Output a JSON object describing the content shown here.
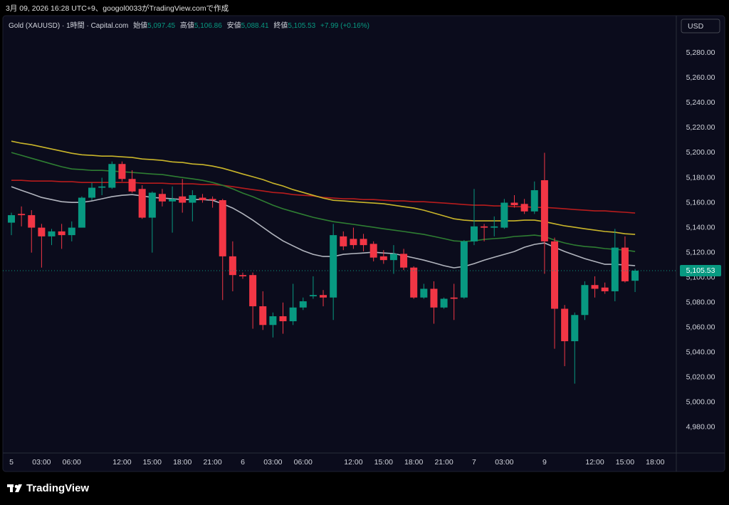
{
  "caption": "3月 09, 2026 16:28 UTC+9、googol0033がTradingView.comで作成",
  "header": {
    "symbol": "Gold (XAUUSD) · 1時間 · Capital.com",
    "open_label": "始値",
    "open": "5,097.45",
    "high_label": "高値",
    "high": "5,106.86",
    "low_label": "安値",
    "low": "5,088.41",
    "close_label": "終値",
    "close": "5,105.53",
    "change": "+7.99 (+0.16%)"
  },
  "currency": "USD",
  "brand": "TradingView",
  "chart_data": {
    "type": "candlestick",
    "up_color": "#089981",
    "down_color": "#f23645",
    "grid": false,
    "categories": [
      "5",
      null,
      null,
      "03:00",
      null,
      null,
      "06:00",
      null,
      null,
      null,
      null,
      "12:00",
      null,
      null,
      "15:00",
      null,
      null,
      "18:00",
      null,
      null,
      "21:00",
      null,
      null,
      "6",
      null,
      null,
      "03:00",
      null,
      null,
      "06:00",
      null,
      null,
      null,
      null,
      "12:00",
      null,
      null,
      "15:00",
      null,
      null,
      "18:00",
      null,
      null,
      "21:00",
      null,
      null,
      "7",
      null,
      null,
      "03:00",
      null,
      null,
      null,
      "9",
      null,
      null,
      null,
      null,
      "12:00",
      null,
      null,
      "15:00",
      null,
      null,
      "18:00"
    ],
    "open": [
      5144,
      5151,
      5150,
      5140,
      5133,
      5137,
      5134,
      5140,
      5164,
      5172,
      5172,
      5191,
      5179,
      5171,
      5148,
      5167,
      5161,
      5165,
      5160,
      5164,
      5163,
      5162,
      5117,
      5102,
      5102,
      5077,
      5062,
      5069,
      5065,
      5076,
      5085,
      5086,
      5084,
      5133,
      5131,
      5131,
      5127,
      5117,
      5114,
      5119,
      5108,
      5084,
      5091,
      5076,
      5084,
      5084,
      5129,
      5141,
      5140,
      5140,
      5160,
      5159,
      5153,
      5178,
      5129,
      5075,
      5049,
      5070,
      5094,
      5092,
      5089,
      5124,
      5097.45,
      null,
      null
    ],
    "high": [
      5152,
      5157,
      5154,
      5143,
      5139,
      5143,
      5145,
      5165,
      5176,
      5180,
      5193,
      5193,
      5186,
      5174,
      5169,
      5171,
      5173,
      5179,
      5170,
      5167,
      5165,
      5163,
      5129,
      5104,
      5104,
      5089,
      5072,
      5080,
      5095,
      5084,
      5101,
      5090,
      5143,
      5137,
      5140,
      5135,
      5129,
      5122,
      5126,
      5123,
      5109,
      5095,
      5097,
      5084,
      5095,
      5130,
      5171,
      5143,
      5149,
      5163,
      5166,
      5163,
      5177,
      5200,
      5132,
      5078,
      5072,
      5097,
      5101,
      5096,
      5139,
      5133,
      5106.86,
      null,
      null
    ],
    "low": [
      5134,
      5141,
      5120,
      5108,
      5126,
      5123,
      5129,
      5143,
      5162,
      5166,
      5171,
      5177,
      5168,
      5147,
      5120,
      5157,
      5136,
      5152,
      5145,
      5160,
      5156,
      5082,
      5089,
      5099,
      5059,
      5058,
      5052,
      5055,
      5062,
      5074,
      5083,
      5077,
      5066,
      5122,
      5123,
      5121,
      5113,
      5111,
      5103,
      5106,
      5083,
      5083,
      5063,
      5075,
      5066,
      5083,
      5126,
      5129,
      5133,
      5139,
      5156,
      5151,
      5151,
      5103,
      5043,
      5029,
      5015,
      5066,
      5084,
      5087,
      5081,
      5096,
      5088.41,
      null,
      null
    ],
    "close": [
      5150,
      5150,
      5140,
      5133,
      5137,
      5134,
      5140,
      5164,
      5172,
      5173,
      5191,
      5179,
      5169,
      5148,
      5168,
      5161,
      5163,
      5160,
      5166,
      5162,
      5162,
      5117,
      5102,
      5101,
      5077,
      5062,
      5069,
      5065,
      5076,
      5081,
      5086,
      5084,
      5134,
      5125,
      5126,
      5126,
      5116,
      5114,
      5119,
      5108,
      5084,
      5091,
      5076,
      5083,
      5083,
      5129,
      5141,
      5140,
      5141,
      5160,
      5158,
      5153,
      5170,
      5129,
      5075,
      5049,
      5070,
      5094,
      5091,
      5089,
      5124,
      5097,
      5105.53,
      null,
      null
    ],
    "lines": [
      {
        "color": "#b71c1c",
        "values": [
          5177.9,
          5177.9,
          5177.3,
          5177.3,
          5177.3,
          5176.8,
          5176.8,
          5176.2,
          5176.2,
          5176.2,
          5176.2,
          5176.2,
          5176.2,
          5175.6,
          5175.6,
          5175.6,
          5175.1,
          5175.1,
          5175.1,
          5174.5,
          5174.5,
          5173.9,
          5172.8,
          5171.6,
          5170.5,
          5169.4,
          5168.2,
          5167.7,
          5166.5,
          5165.9,
          5165.4,
          5164.2,
          5163.7,
          5163.1,
          5163.1,
          5162.5,
          5162.5,
          5161.9,
          5161.4,
          5161.4,
          5160.8,
          5160.8,
          5160.2,
          5159.7,
          5159.1,
          5158.5,
          5158.0,
          5158.0,
          5157.4,
          5157.4,
          5156.8,
          5156.8,
          5156.2,
          5156.2,
          5155.7,
          5155.1,
          5154.5,
          5154.0,
          5153.4,
          5153.4,
          5152.8,
          5152.3,
          5151.7,
          null,
          null
        ]
      },
      {
        "color": "#c9b52a",
        "values": [
          5209.3,
          5207.6,
          5206.4,
          5204.7,
          5203.0,
          5201.3,
          5199.6,
          5198.4,
          5197.9,
          5197.3,
          5197.3,
          5196.7,
          5196.2,
          5195.0,
          5194.5,
          5193.9,
          5192.7,
          5192.2,
          5191.0,
          5190.5,
          5189.3,
          5187.6,
          5185.3,
          5183.0,
          5180.8,
          5178.5,
          5175.6,
          5173.4,
          5170.5,
          5168.2,
          5165.9,
          5163.7,
          5161.9,
          5161.4,
          5160.8,
          5160.2,
          5159.7,
          5159.1,
          5158.0,
          5156.8,
          5155.7,
          5154.0,
          5151.7,
          5149.4,
          5147.1,
          5146.0,
          5145.4,
          5145.4,
          5145.4,
          5145.4,
          5145.4,
          5146.0,
          5146.0,
          5144.8,
          5143.1,
          5141.4,
          5140.3,
          5139.1,
          5138.0,
          5136.9,
          5136.3,
          5135.1,
          5134.6,
          null,
          null
        ]
      },
      {
        "color": "#2e7d32",
        "values": [
          5200.2,
          5197.9,
          5195.6,
          5193.3,
          5191.0,
          5188.8,
          5187.0,
          5186.5,
          5185.9,
          5185.9,
          5185.3,
          5184.8,
          5184.2,
          5183.6,
          5183.0,
          5182.5,
          5181.3,
          5180.2,
          5179.1,
          5177.9,
          5176.2,
          5173.9,
          5171.1,
          5167.7,
          5164.8,
          5161.4,
          5158.0,
          5155.1,
          5152.8,
          5150.5,
          5148.3,
          5146.5,
          5144.8,
          5143.7,
          5142.6,
          5141.4,
          5140.3,
          5139.1,
          5138.0,
          5136.9,
          5135.7,
          5134.6,
          5132.9,
          5131.2,
          5129.4,
          5128.9,
          5129.4,
          5130.6,
          5131.2,
          5131.7,
          5132.9,
          5133.4,
          5134.0,
          5132.9,
          5130.0,
          5127.7,
          5126.0,
          5124.9,
          5124.3,
          5123.2,
          5122.6,
          5122.0,
          5120.9,
          null,
          null
        ]
      },
      {
        "color": "#b2b5be",
        "values": [
          5172.8,
          5169.9,
          5167.1,
          5164.2,
          5162.5,
          5160.8,
          5160.2,
          5160.2,
          5161.4,
          5163.1,
          5164.8,
          5165.9,
          5166.5,
          5165.4,
          5164.2,
          5163.7,
          5163.1,
          5162.5,
          5162.5,
          5162.5,
          5161.9,
          5159.1,
          5155.7,
          5151.1,
          5146.0,
          5140.3,
          5134.6,
          5129.4,
          5125.4,
          5121.5,
          5118.6,
          5116.9,
          5116.9,
          5118.6,
          5119.2,
          5119.7,
          5120.3,
          5119.7,
          5119.2,
          5117.5,
          5115.8,
          5114.0,
          5111.8,
          5109.5,
          5107.8,
          5108.9,
          5111.2,
          5114.0,
          5116.3,
          5118.6,
          5120.9,
          5124.3,
          5126.6,
          5127.7,
          5124.3,
          5120.9,
          5118.0,
          5115.2,
          5112.9,
          5110.6,
          5110.6,
          5110.1,
          5109.5,
          null,
          null
        ]
      }
    ],
    "last_price": {
      "value": 5105.53,
      "label": "5,105.53"
    },
    "ylim": [
      4960,
      5295
    ],
    "yticks": [
      {
        "value": 4980,
        "label": "4,980.00"
      },
      {
        "value": 5000,
        "label": "5,000.00"
      },
      {
        "value": 5020,
        "label": "5,020.00"
      },
      {
        "value": 5040,
        "label": "5,040.00"
      },
      {
        "value": 5060,
        "label": "5,060.00"
      },
      {
        "value": 5080,
        "label": "5,080.00"
      },
      {
        "value": 5100,
        "label": "5,100.00"
      },
      {
        "value": 5120,
        "label": "5,120.00"
      },
      {
        "value": 5140,
        "label": "5,140.00"
      },
      {
        "value": 5160,
        "label": "5,160.00"
      },
      {
        "value": 5180,
        "label": "5,180.00"
      },
      {
        "value": 5200,
        "label": "5,200.00"
      },
      {
        "value": 5220,
        "label": "5,220.00"
      },
      {
        "value": 5240,
        "label": "5,240.00"
      },
      {
        "value": 5260,
        "label": "5,260.00"
      },
      {
        "value": 5280,
        "label": "5,280.00"
      }
    ]
  }
}
